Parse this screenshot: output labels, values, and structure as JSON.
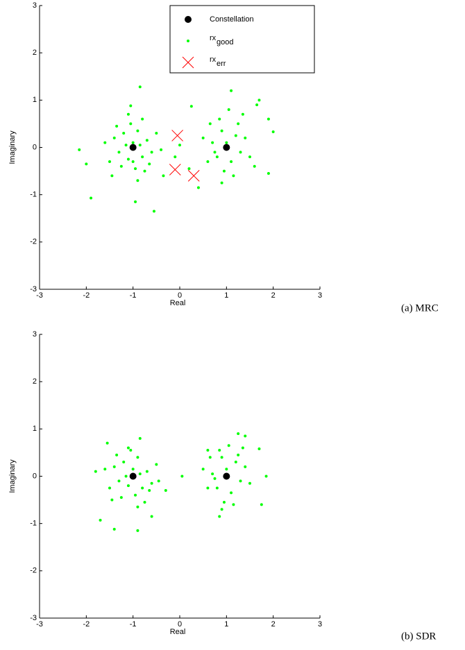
{
  "chart_data": [
    {
      "type": "scatter",
      "caption": "(a) MRC",
      "xlabel": "Real",
      "ylabel": "Imaginary",
      "xlim": [
        -3,
        3
      ],
      "ylim": [
        -3,
        3
      ],
      "xticks": [
        -3,
        -2,
        -1,
        0,
        1,
        2,
        3
      ],
      "yticks": [
        -3,
        -2,
        -1,
        0,
        1,
        2,
        3
      ],
      "legend": "upper right",
      "series": [
        {
          "name": "Constellation",
          "color": "#000000",
          "marker": "circle",
          "x": [
            -1,
            1
          ],
          "y": [
            0,
            0
          ]
        },
        {
          "name": "rx",
          "subscript": "good",
          "color": "#00ff00",
          "marker": "dot",
          "x": [
            -1.0,
            -1.2,
            -0.8,
            -1.1,
            -0.9,
            -1.3,
            -0.7,
            -1.05,
            -0.95,
            -1.4,
            -0.6,
            -1.25,
            -0.85,
            -1.15,
            -0.75,
            -1.5,
            -0.5,
            -1.35,
            -0.65,
            -0.9,
            -1.6,
            -0.4,
            -1.1,
            -1.45,
            -0.8,
            -1.0,
            -2.15,
            -2.0,
            -1.9,
            -0.85,
            -0.55,
            -0.95,
            -1.05,
            -0.35,
            1.0,
            0.8,
            1.2,
            0.9,
            1.1,
            0.7,
            1.3,
            0.95,
            1.25,
            0.6,
            1.4,
            0.85,
            1.15,
            0.5,
            1.5,
            0.75,
            1.05,
            0.65,
            1.35,
            0.9,
            0.25,
            1.1,
            1.7,
            1.65,
            1.9,
            2.0,
            1.9,
            0.4,
            1.6,
            0.2,
            0.0,
            -0.1
          ],
          "y": [
            0.1,
            0.3,
            -0.2,
            -0.25,
            0.35,
            -0.1,
            0.15,
            0.5,
            -0.45,
            0.2,
            -0.1,
            -0.4,
            0.05,
            0.05,
            -0.5,
            -0.3,
            0.3,
            0.45,
            -0.35,
            -0.7,
            0.1,
            -0.05,
            0.7,
            -0.6,
            0.6,
            -0.3,
            -0.05,
            -0.35,
            -1.07,
            1.28,
            -1.35,
            -1.15,
            0.88,
            -0.6,
            0.1,
            -0.2,
            0.25,
            0.35,
            -0.3,
            0.1,
            -0.1,
            -0.5,
            0.5,
            -0.3,
            0.2,
            0.6,
            -0.6,
            0.2,
            -0.2,
            -0.1,
            0.8,
            0.5,
            0.7,
            -0.75,
            0.87,
            1.2,
            1.0,
            0.9,
            0.6,
            0.33,
            -0.55,
            -0.85,
            -0.4,
            -0.45,
            0.05,
            -0.2
          ]
        },
        {
          "name": "rx",
          "subscript": "err",
          "color": "#ff0000",
          "marker": "x",
          "x": [
            -0.05,
            -0.1,
            0.3
          ],
          "y": [
            0.25,
            -0.47,
            -0.6
          ]
        }
      ]
    },
    {
      "type": "scatter",
      "caption": "(b) SDR",
      "xlabel": "Real",
      "ylabel": "Imaginary",
      "xlim": [
        -3,
        3
      ],
      "ylim": [
        -3,
        3
      ],
      "xticks": [
        -3,
        -2,
        -1,
        0,
        1,
        2,
        3
      ],
      "yticks": [
        -3,
        -2,
        -1,
        0,
        1,
        2,
        3
      ],
      "series": [
        {
          "name": "Constellation",
          "color": "#000000",
          "marker": "circle",
          "x": [
            -1,
            1
          ],
          "y": [
            0,
            0
          ]
        },
        {
          "name": "rx",
          "subscript": "good",
          "color": "#00ff00",
          "marker": "dot",
          "x": [
            -1.0,
            -1.2,
            -0.8,
            -1.1,
            -0.9,
            -1.3,
            -0.7,
            -1.05,
            -0.95,
            -1.4,
            -0.6,
            -1.25,
            -0.85,
            -1.15,
            -0.75,
            -1.5,
            -0.5,
            -1.35,
            -0.65,
            -0.9,
            -1.6,
            -0.45,
            -1.1,
            -1.45,
            -1.7,
            -1.4,
            -0.9,
            -0.6,
            -1.55,
            -0.85,
            -0.3,
            -1.8,
            1.0,
            0.8,
            1.2,
            0.9,
            1.1,
            0.7,
            1.3,
            0.95,
            1.25,
            0.6,
            1.4,
            0.85,
            1.15,
            0.5,
            1.5,
            0.75,
            1.05,
            0.65,
            1.35,
            0.9,
            0.05,
            1.25,
            1.4,
            1.7,
            1.85,
            1.75,
            0.6,
            0.85
          ],
          "y": [
            0.15,
            0.3,
            -0.25,
            -0.2,
            0.4,
            -0.1,
            0.1,
            0.55,
            -0.4,
            0.2,
            -0.15,
            -0.45,
            0.05,
            0.0,
            -0.55,
            -0.25,
            0.25,
            0.45,
            -0.3,
            -0.65,
            0.15,
            -0.1,
            0.6,
            -0.5,
            -0.93,
            -1.12,
            -1.15,
            -0.85,
            0.7,
            0.8,
            -0.3,
            0.1,
            0.15,
            -0.25,
            0.3,
            0.4,
            -0.35,
            0.05,
            -0.1,
            -0.55,
            0.45,
            -0.25,
            0.2,
            0.55,
            -0.6,
            0.15,
            -0.15,
            -0.05,
            0.65,
            0.4,
            0.6,
            -0.7,
            0.0,
            0.9,
            0.85,
            0.58,
            0.0,
            -0.6,
            0.55,
            -0.85
          ]
        }
      ]
    }
  ]
}
